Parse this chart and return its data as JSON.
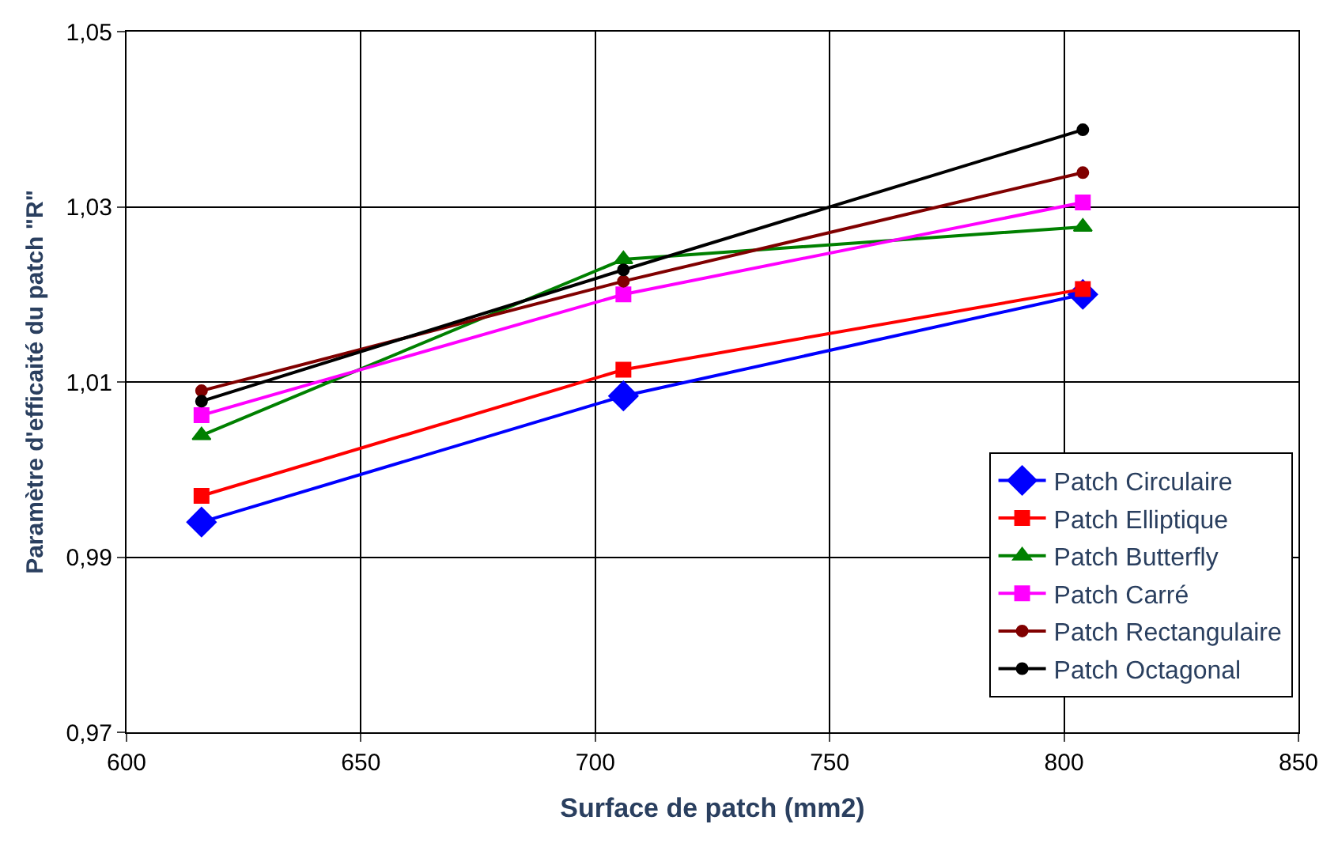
{
  "chart_data": {
    "type": "line",
    "xlabel": "Surface de patch (mm2)",
    "ylabel": "Paramètre d'efficaité du patch \"R\"",
    "xlim": [
      600,
      850
    ],
    "xticks": [
      600,
      650,
      700,
      750,
      800,
      850
    ],
    "ylim": [
      0.97,
      1.05
    ],
    "yticks": [
      {
        "value": 0.97,
        "label": "0,97"
      },
      {
        "value": 0.99,
        "label": "0,99"
      },
      {
        "value": 1.01,
        "label": "1,01"
      },
      {
        "value": 1.03,
        "label": "1,03"
      },
      {
        "value": 1.05,
        "label": "1,05"
      }
    ],
    "grid": true,
    "legend": "bottom right",
    "line_style": "solid",
    "x": [
      616,
      706,
      804
    ],
    "series": [
      {
        "name": "Patch Circulaire",
        "color": "#0000ff",
        "marker": "diamond",
        "values": [
          0.994,
          1.0084,
          1.02
        ]
      },
      {
        "name": "Patch Elliptique",
        "color": "#ff0000",
        "marker": "square",
        "values": [
          0.997,
          1.0114,
          1.0206
        ]
      },
      {
        "name": "Patch Butterfly",
        "color": "#008000",
        "marker": "triangle",
        "values": [
          1.0039,
          1.024,
          1.0277
        ]
      },
      {
        "name": "Patch Carré",
        "color": "#ff00ff",
        "marker": "square",
        "values": [
          1.0062,
          1.02,
          1.0305
        ]
      },
      {
        "name": "Patch Rectangulaire",
        "color": "#800000",
        "marker": "circle",
        "values": [
          1.009,
          1.0215,
          1.0339
        ]
      },
      {
        "name": "Patch Octagonal",
        "color": "#000000",
        "marker": "circle",
        "values": [
          1.0078,
          1.0228,
          1.0388
        ]
      }
    ]
  }
}
